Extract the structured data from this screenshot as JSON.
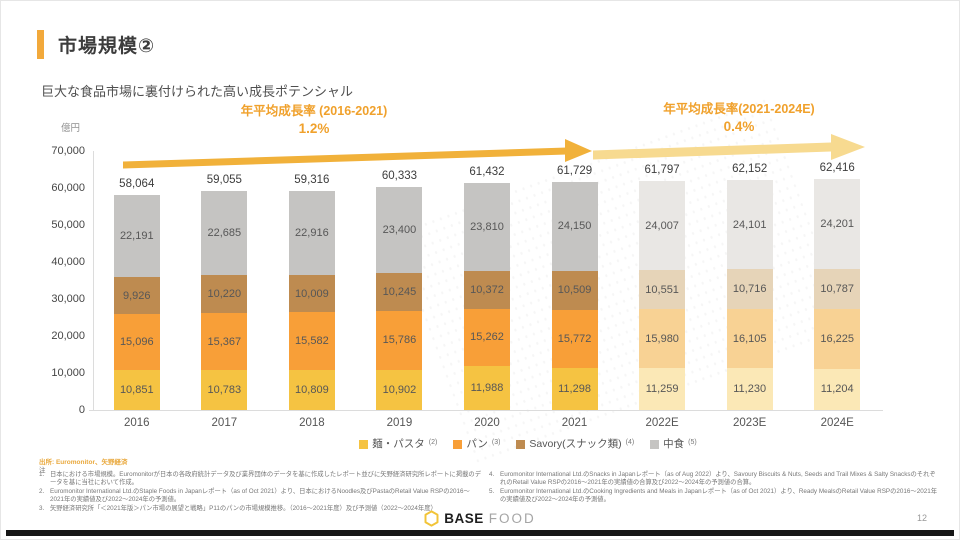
{
  "slide": {
    "title": "市場規模②",
    "page_number": "12"
  },
  "header": {
    "subtitle": "巨大な食品市場に裏付けられた高い成長ポテンシャル"
  },
  "growth_annotations": {
    "period1": {
      "label": "年平均成長率 (2016-2021)",
      "value": "1.2%"
    },
    "period2": {
      "label": "年平均成長率(2021-2024E)",
      "value": "0.4%"
    }
  },
  "colors": {
    "accent": "#F2A93B",
    "growth_text": "#F0A12C",
    "arrow_2016_2021": "#F1B13A",
    "arrow_2021_2024": "#F7DA90",
    "logo_hexagon": "#F2C438"
  },
  "chart_data": {
    "type": "bar",
    "stacked": true,
    "title": "",
    "unit_label": "億円",
    "xlabel": "",
    "ylabel": "億円",
    "ylim": [
      0,
      70000
    ],
    "ytick_step": 10000,
    "grid": false,
    "legend_position": "bottom",
    "categories": [
      "2016",
      "2017",
      "2018",
      "2019",
      "2020",
      "2021",
      "2022E",
      "2023E",
      "2024E"
    ],
    "estimate_categories": [
      "2022E",
      "2023E",
      "2024E"
    ],
    "totals": [
      58064,
      59055,
      59316,
      60333,
      61432,
      61729,
      61797,
      62152,
      62416
    ],
    "series": [
      {
        "name": "麺・パスタ",
        "legend_superscript": "(2)",
        "color": "#F5C342",
        "estimate_color": "#FBE8B6",
        "values": [
          10851,
          10783,
          10809,
          10902,
          11988,
          11298,
          11259,
          11230,
          11204
        ]
      },
      {
        "name": "パン",
        "legend_superscript": "(3)",
        "color": "#F89F38",
        "estimate_color": "#F8D294",
        "values": [
          15096,
          15367,
          15582,
          15786,
          15262,
          15772,
          15980,
          16105,
          16225
        ]
      },
      {
        "name": "Savory(スナック類)",
        "legend_superscript": "(4)",
        "color": "#BE8B50",
        "estimate_color": "#E6D4B8",
        "values": [
          9926,
          10220,
          10009,
          10245,
          10372,
          10509,
          10551,
          10716,
          10787
        ]
      },
      {
        "name": "中食",
        "legend_superscript": "(5)",
        "color": "#C5C4C2",
        "estimate_color": "#E9E7E4",
        "values": [
          22191,
          22685,
          22916,
          23400,
          23810,
          24150,
          24007,
          24101,
          24201
        ]
      }
    ]
  },
  "footnotes": {
    "source": "出所: Euromonitor、矢野経済",
    "note_label": "注",
    "left": [
      {
        "num": "1.",
        "text": "日本における市場規模。Euromonitorが日本の各政府統計データ及び業界団体のデータを基に作成したレポート並びに矢野経済研究所レポートに掲載のデータを基に当社において作成。"
      },
      {
        "num": "2.",
        "text": "Euromonitor International Ltd.のStaple Foods in Japanレポート（as of Oct 2021）より、日本におけるNoodles及びPastaのRetail Value RSPの2016～2021年の実績値及び2022～2024年の予測値。"
      },
      {
        "num": "3.",
        "text": "矢野経済研究所「＜2021年版＞パン市場の展望と戦略」P11のパンの市場規模推移。（2016～2021年度）及び予測値（2022～2024年度）"
      }
    ],
    "right": [
      {
        "num": "4.",
        "text": "Euromonitor International Ltd.のSnacks in Japanレポート（as of Aug 2022）より、Savoury Biscuits & Nuts, Seeds and Trail Mixes & Salty SnacksのそれぞれのRetail Value RSPの2016～2021年の実績値の合算及び2022～2024年の予測値の合算。"
      },
      {
        "num": "5.",
        "text": "Euromonitor International Ltd.のCooking Ingredients and Meals in Japanレポート（as of Oct 2021）より、Ready MealsのRetail Value RSPの2016～2021年の実績値及び2022～2024年の予測値。"
      }
    ]
  },
  "footer": {
    "logo_base": "BASE",
    "logo_food": "FOOD"
  }
}
